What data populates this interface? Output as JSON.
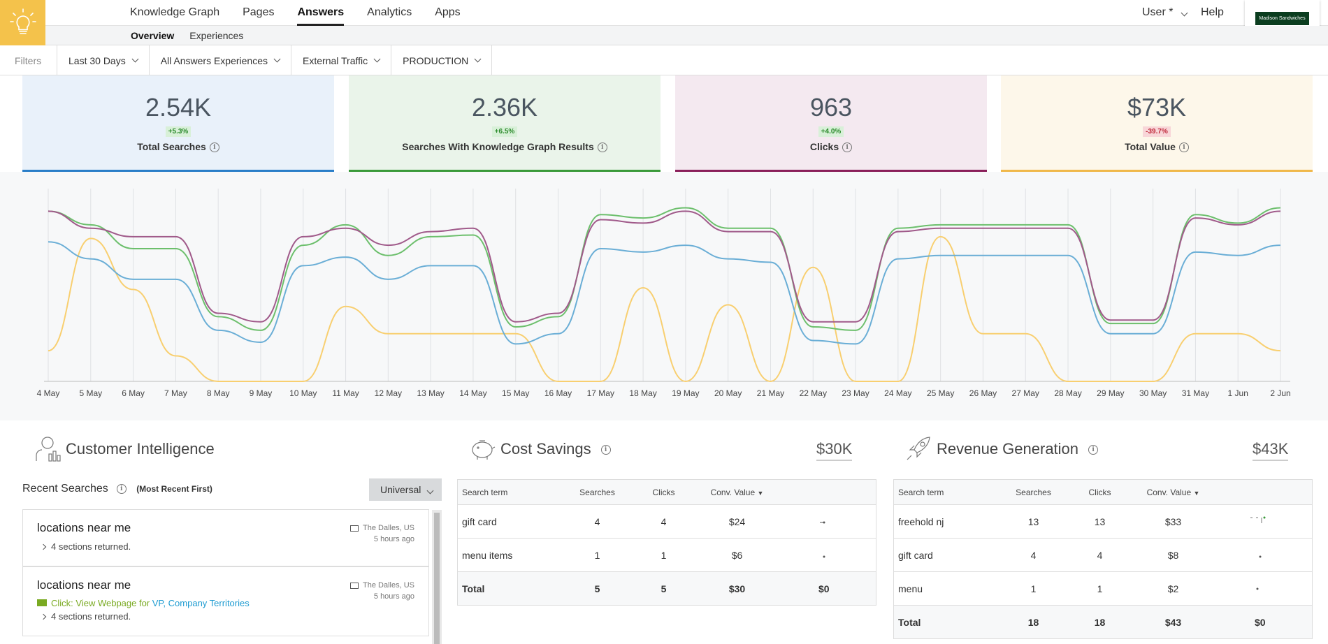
{
  "nav": {
    "items": [
      {
        "label": "Knowledge Graph",
        "active": false
      },
      {
        "label": "Pages",
        "active": false
      },
      {
        "label": "Answers",
        "active": true
      },
      {
        "label": "Analytics",
        "active": false
      },
      {
        "label": "Apps",
        "active": false
      }
    ],
    "user_label": "User *",
    "help_label": "Help",
    "brand_name": "Madison Sandwiches"
  },
  "subnav": {
    "items": [
      {
        "label": "Overview",
        "active": true
      },
      {
        "label": "Experiences",
        "active": false
      }
    ]
  },
  "filters": {
    "label": "Filters",
    "dropdowns": [
      "Last 30 Days",
      "All Answers Experiences",
      "External Traffic",
      "PRODUCTION"
    ]
  },
  "kpis": [
    {
      "value": "2.54K",
      "delta": "+5.3%",
      "direction": "up",
      "label": "Total Searches",
      "bg": "#e9f1fa",
      "accent": "#2a7ec8"
    },
    {
      "value": "2.36K",
      "delta": "+6.5%",
      "direction": "up",
      "label": "Searches With Knowledge Graph Results",
      "bg": "#eaf4ea",
      "accent": "#3a9a3a"
    },
    {
      "value": "963",
      "delta": "+4.0%",
      "direction": "up",
      "label": "Clicks",
      "bg": "#f4e9f0",
      "accent": "#8a1f5a"
    },
    {
      "value": "$73K",
      "delta": "-39.7%",
      "direction": "down",
      "label": "Total Value",
      "bg": "#fdf7ea",
      "accent": "#f0b84a"
    }
  ],
  "chart_data": {
    "type": "line",
    "x": [
      "4 May",
      "5 May",
      "6 May",
      "7 May",
      "8 May",
      "9 May",
      "10 May",
      "11 May",
      "12 May",
      "13 May",
      "14 May",
      "15 May",
      "16 May",
      "17 May",
      "18 May",
      "19 May",
      "20 May",
      "21 May",
      "22 May",
      "23 May",
      "24 May",
      "25 May",
      "26 May",
      "27 May",
      "28 May",
      "29 May",
      "30 May",
      "31 May",
      "1 Jun",
      "2 Jun"
    ],
    "ylim": [
      0,
      110
    ],
    "grid": true,
    "series": [
      {
        "color": "#a05a8a",
        "values": [
          100,
          90,
          85,
          85,
          40,
          35,
          85,
          90,
          80,
          88,
          90,
          35,
          40,
          95,
          93,
          100,
          88,
          88,
          35,
          35,
          88,
          90,
          90,
          90,
          90,
          36,
          36,
          96,
          92,
          100
        ]
      },
      {
        "color": "#6cbf6c",
        "values": [
          100,
          92,
          78,
          78,
          38,
          30,
          80,
          92,
          74,
          85,
          86,
          32,
          38,
          98,
          96,
          102,
          90,
          90,
          32,
          30,
          90,
          92,
          92,
          92,
          92,
          34,
          34,
          98,
          93,
          102
        ]
      },
      {
        "color": "#6aaed6",
        "values": [
          82,
          72,
          60,
          60,
          30,
          23,
          68,
          73,
          60,
          68,
          68,
          22,
          28,
          78,
          76,
          80,
          72,
          70,
          24,
          22,
          72,
          74,
          74,
          74,
          74,
          28,
          28,
          76,
          74,
          80
        ]
      },
      {
        "color": "#f8cf70",
        "values": [
          18,
          84,
          54,
          15,
          0,
          0,
          0,
          44,
          28,
          28,
          28,
          28,
          0,
          0,
          55,
          0,
          45,
          0,
          67,
          0,
          0,
          85,
          28,
          28,
          0,
          0,
          0,
          28,
          28,
          18
        ]
      }
    ]
  },
  "customer_intelligence": {
    "title": "Customer Intelligence",
    "recent_label": "Recent Searches",
    "order_label": "(Most Recent First)",
    "dropdown": "Universal",
    "cards": [
      {
        "title": "locations near me",
        "location": "The Dalles, US",
        "time": "5 hours ago",
        "sections": "4 sections returned.",
        "click": null
      },
      {
        "title": "locations near me",
        "location": "The Dalles, US",
        "time": "5 hours ago",
        "sections": "4 sections returned.",
        "click_prefix": "Click: View Webpage for",
        "click_link": "VP, Company Territories"
      }
    ]
  },
  "cost_savings": {
    "title": "Cost Savings",
    "total": "$30K",
    "headers": [
      "Search term",
      "Searches",
      "Clicks",
      "Conv. Value"
    ],
    "rows": [
      {
        "term": "gift card",
        "searches": "4",
        "clicks": "4",
        "value": "$24"
      },
      {
        "term": "menu items",
        "searches": "1",
        "clicks": "1",
        "value": "$6"
      }
    ],
    "total_row": {
      "term": "Total",
      "searches": "5",
      "clicks": "5",
      "value": "$30",
      "extra": "$0"
    }
  },
  "revenue_generation": {
    "title": "Revenue Generation",
    "total": "$43K",
    "headers": [
      "Search term",
      "Searches",
      "Clicks",
      "Conv. Value"
    ],
    "rows": [
      {
        "term": "freehold nj",
        "searches": "13",
        "clicks": "13",
        "value": "$33"
      },
      {
        "term": "gift card",
        "searches": "4",
        "clicks": "4",
        "value": "$8"
      },
      {
        "term": "menu",
        "searches": "1",
        "clicks": "1",
        "value": "$2"
      }
    ],
    "total_row": {
      "term": "Total",
      "searches": "18",
      "clicks": "18",
      "value": "$43",
      "extra": "$0"
    }
  }
}
